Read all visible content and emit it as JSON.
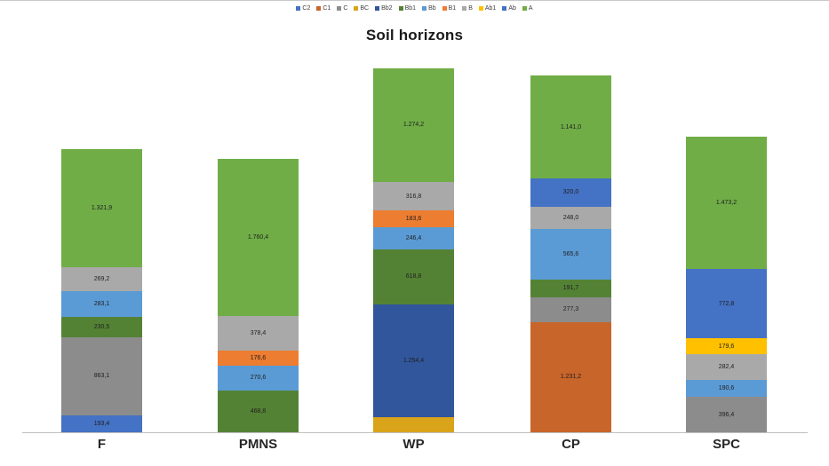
{
  "title": "Soil horizons",
  "chart_data": {
    "type": "bar",
    "subtype": "stacked-column",
    "title": "Soil horizons",
    "legend_position": "top-center",
    "gridlines": false,
    "y_axis_visible": false,
    "baseline_color": "#bfbfbf",
    "value_format": "thousand separator '.', decimal ','",
    "categories": [
      "F",
      "PMNS",
      "WP",
      "CP",
      "SPC"
    ],
    "series": [
      {
        "name": "C2",
        "color": "#4472C4",
        "values": [
          193.4,
          0,
          0,
          0,
          0
        ],
        "labels": [
          "193,4",
          "",
          "",
          "",
          ""
        ]
      },
      {
        "name": "C1",
        "color": "#C8652A",
        "values": [
          0,
          0,
          0,
          1231.2,
          0
        ],
        "labels": [
          "",
          "",
          "",
          "1.231,2",
          ""
        ]
      },
      {
        "name": "C",
        "color": "#8C8C8C",
        "values": [
          863.1,
          0,
          0,
          277.3,
          396.4
        ],
        "labels": [
          "863,1",
          "",
          "",
          "277,3",
          "396,4"
        ]
      },
      {
        "name": "BC",
        "color": "#D9A419",
        "values": [
          0,
          0,
          170,
          0,
          0
        ],
        "labels": [
          "",
          "",
          "",
          "",
          ""
        ]
      },
      {
        "name": "Bb2",
        "color": "#31569B",
        "values": [
          0,
          0,
          1254.4,
          0,
          0
        ],
        "labels": [
          "",
          "",
          "1.254,4",
          "",
          ""
        ]
      },
      {
        "name": "Bb1",
        "color": "#548235",
        "values": [
          230.5,
          468.8,
          618.8,
          191.7,
          0
        ],
        "labels": [
          "230,5",
          "468,8",
          "618,8",
          "191,7",
          ""
        ]
      },
      {
        "name": "Bb",
        "color": "#5B9BD5",
        "values": [
          283.1,
          270.6,
          246.4,
          565.6,
          190.6
        ],
        "labels": [
          "283,1",
          "270,6",
          "246,4",
          "565,6",
          "190,6"
        ]
      },
      {
        "name": "B1",
        "color": "#ED7D31",
        "values": [
          0,
          176.6,
          183.6,
          0,
          0
        ],
        "labels": [
          "",
          "176,6",
          "183,6",
          "",
          ""
        ]
      },
      {
        "name": "B",
        "color": "#A9A9A9",
        "values": [
          269.2,
          378.4,
          316.8,
          248.0,
          282.4
        ],
        "labels": [
          "269,2",
          "378,4",
          "316,8",
          "248,0",
          "282,4"
        ]
      },
      {
        "name": "Ab1",
        "color": "#FFC000",
        "values": [
          0,
          0,
          0,
          0,
          179.6
        ],
        "labels": [
          "",
          "",
          "",
          "",
          "179,6"
        ]
      },
      {
        "name": "Ab",
        "color": "#4472C4",
        "values": [
          0,
          0,
          0,
          320.0,
          772.8
        ],
        "labels": [
          "",
          "",
          "",
          "320,0",
          "772,8"
        ]
      },
      {
        "name": "A",
        "color": "#70AD47",
        "values": [
          1321.9,
          1760.4,
          1274.2,
          1141.0,
          1473.2
        ],
        "labels": [
          "1.321,9",
          "1.760,4",
          "1.274,2",
          "1.141,0",
          "1.473,2"
        ]
      }
    ],
    "notes": "WP bottom BC segment has no visible data label; its value (~170) is estimated from segment height."
  }
}
